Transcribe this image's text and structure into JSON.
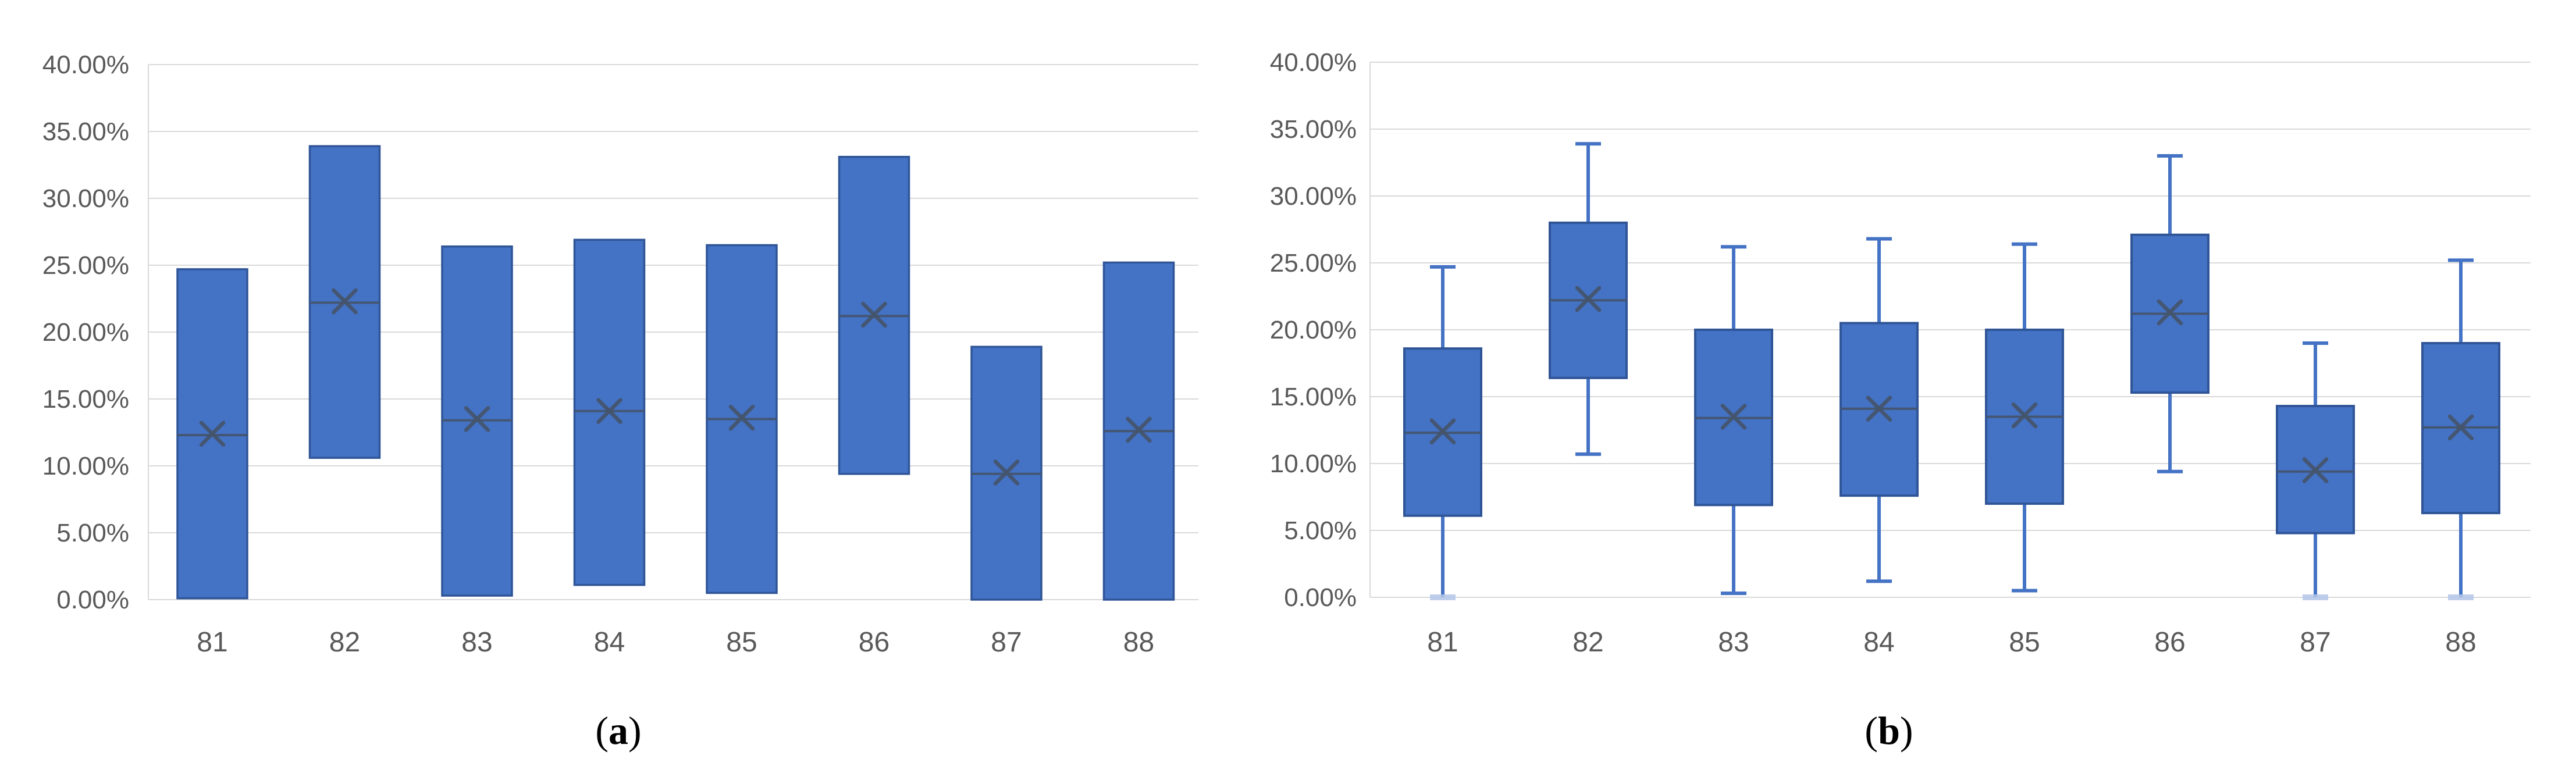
{
  "figure": {
    "background": "#ffffff",
    "captions": [
      {
        "open": "(",
        "letter": "a",
        "close": ")"
      },
      {
        "open": "(",
        "letter": "b",
        "close": ")"
      }
    ]
  },
  "colors": {
    "bar_fill": "#4472C4",
    "bar_border": "#2F5597",
    "whisker": "#4472C4",
    "whisker_cap_zero": "#B4C7E7",
    "marker": "#44546A",
    "median": "#44546A",
    "grid": "#D9D9D9",
    "axis_line": "#D9D9D9",
    "tick_text": "#595959",
    "caption_text": "#000000"
  },
  "chart_data": [
    {
      "type": "bar",
      "subtype": "floating-range-bar",
      "panel": "a",
      "title": "",
      "xlabel": "",
      "ylabel": "",
      "categories": [
        "81",
        "82",
        "83",
        "84",
        "85",
        "86",
        "87",
        "88"
      ],
      "series": [
        {
          "name": "min",
          "values": [
            0.1,
            10.6,
            0.3,
            1.1,
            0.5,
            9.4,
            0.0,
            0.0
          ]
        },
        {
          "name": "max",
          "values": [
            24.7,
            33.9,
            26.4,
            26.9,
            26.5,
            33.1,
            18.9,
            25.2
          ]
        },
        {
          "name": "median",
          "values": [
            12.3,
            22.2,
            13.4,
            14.1,
            13.5,
            21.2,
            9.4,
            12.6
          ]
        },
        {
          "name": "mean",
          "values": [
            12.4,
            22.3,
            13.5,
            14.1,
            13.6,
            21.3,
            9.5,
            12.7
          ]
        }
      ],
      "ylim": [
        0,
        40
      ],
      "ytick_step": 5,
      "ytick_labels": [
        "0.00%",
        "5.00%",
        "10.00%",
        "15.00%",
        "20.00%",
        "25.00%",
        "30.00%",
        "35.00%",
        "40.00%"
      ],
      "grid": "horizontal",
      "legend": "none"
    },
    {
      "type": "boxplot",
      "panel": "b",
      "title": "",
      "xlabel": "",
      "ylabel": "",
      "categories": [
        "81",
        "82",
        "83",
        "84",
        "85",
        "86",
        "87",
        "88"
      ],
      "series": [
        {
          "name": "min",
          "values": [
            0.0,
            10.7,
            0.3,
            1.2,
            0.5,
            9.4,
            0.0,
            0.0
          ]
        },
        {
          "name": "q1",
          "values": [
            6.1,
            16.4,
            6.9,
            7.6,
            7.0,
            15.3,
            4.8,
            6.3
          ]
        },
        {
          "name": "median",
          "values": [
            12.3,
            22.2,
            13.4,
            14.1,
            13.5,
            21.2,
            9.4,
            12.7
          ]
        },
        {
          "name": "q3",
          "values": [
            18.6,
            28.0,
            20.0,
            20.5,
            20.0,
            27.1,
            14.3,
            19.0
          ]
        },
        {
          "name": "max",
          "values": [
            24.7,
            33.9,
            26.2,
            26.8,
            26.4,
            33.0,
            19.0,
            25.2
          ]
        },
        {
          "name": "mean",
          "values": [
            12.4,
            22.3,
            13.5,
            14.1,
            13.6,
            21.3,
            9.5,
            12.7
          ]
        }
      ],
      "ylim": [
        0,
        40
      ],
      "ytick_step": 5,
      "ytick_labels": [
        "0.00%",
        "5.00%",
        "10.00%",
        "15.00%",
        "20.00%",
        "25.00%",
        "30.00%",
        "35.00%",
        "40.00%"
      ],
      "grid": "horizontal",
      "legend": "none"
    }
  ]
}
